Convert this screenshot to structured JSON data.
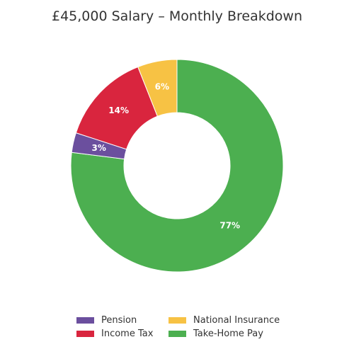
{
  "chart_data": {
    "type": "pie",
    "title": "£45,000 Salary – Monthly Breakdown",
    "categories": [
      "Take-Home Pay",
      "Pension",
      "Income Tax",
      "National Insurance"
    ],
    "values": [
      77,
      3,
      14,
      6
    ],
    "labels": [
      "77%",
      "3%",
      "14%",
      "6%"
    ],
    "colors": [
      "#4caf50",
      "#6b4f9e",
      "#d9253e",
      "#f7c244"
    ],
    "donut": true,
    "legend": {
      "position": "bottom",
      "entries": [
        {
          "label": "Pension",
          "color": "#6b4f9e"
        },
        {
          "label": "National Insurance",
          "color": "#f7c244"
        },
        {
          "label": "Income Tax",
          "color": "#d9253e"
        },
        {
          "label": "Take-Home Pay",
          "color": "#4caf50"
        }
      ]
    }
  }
}
